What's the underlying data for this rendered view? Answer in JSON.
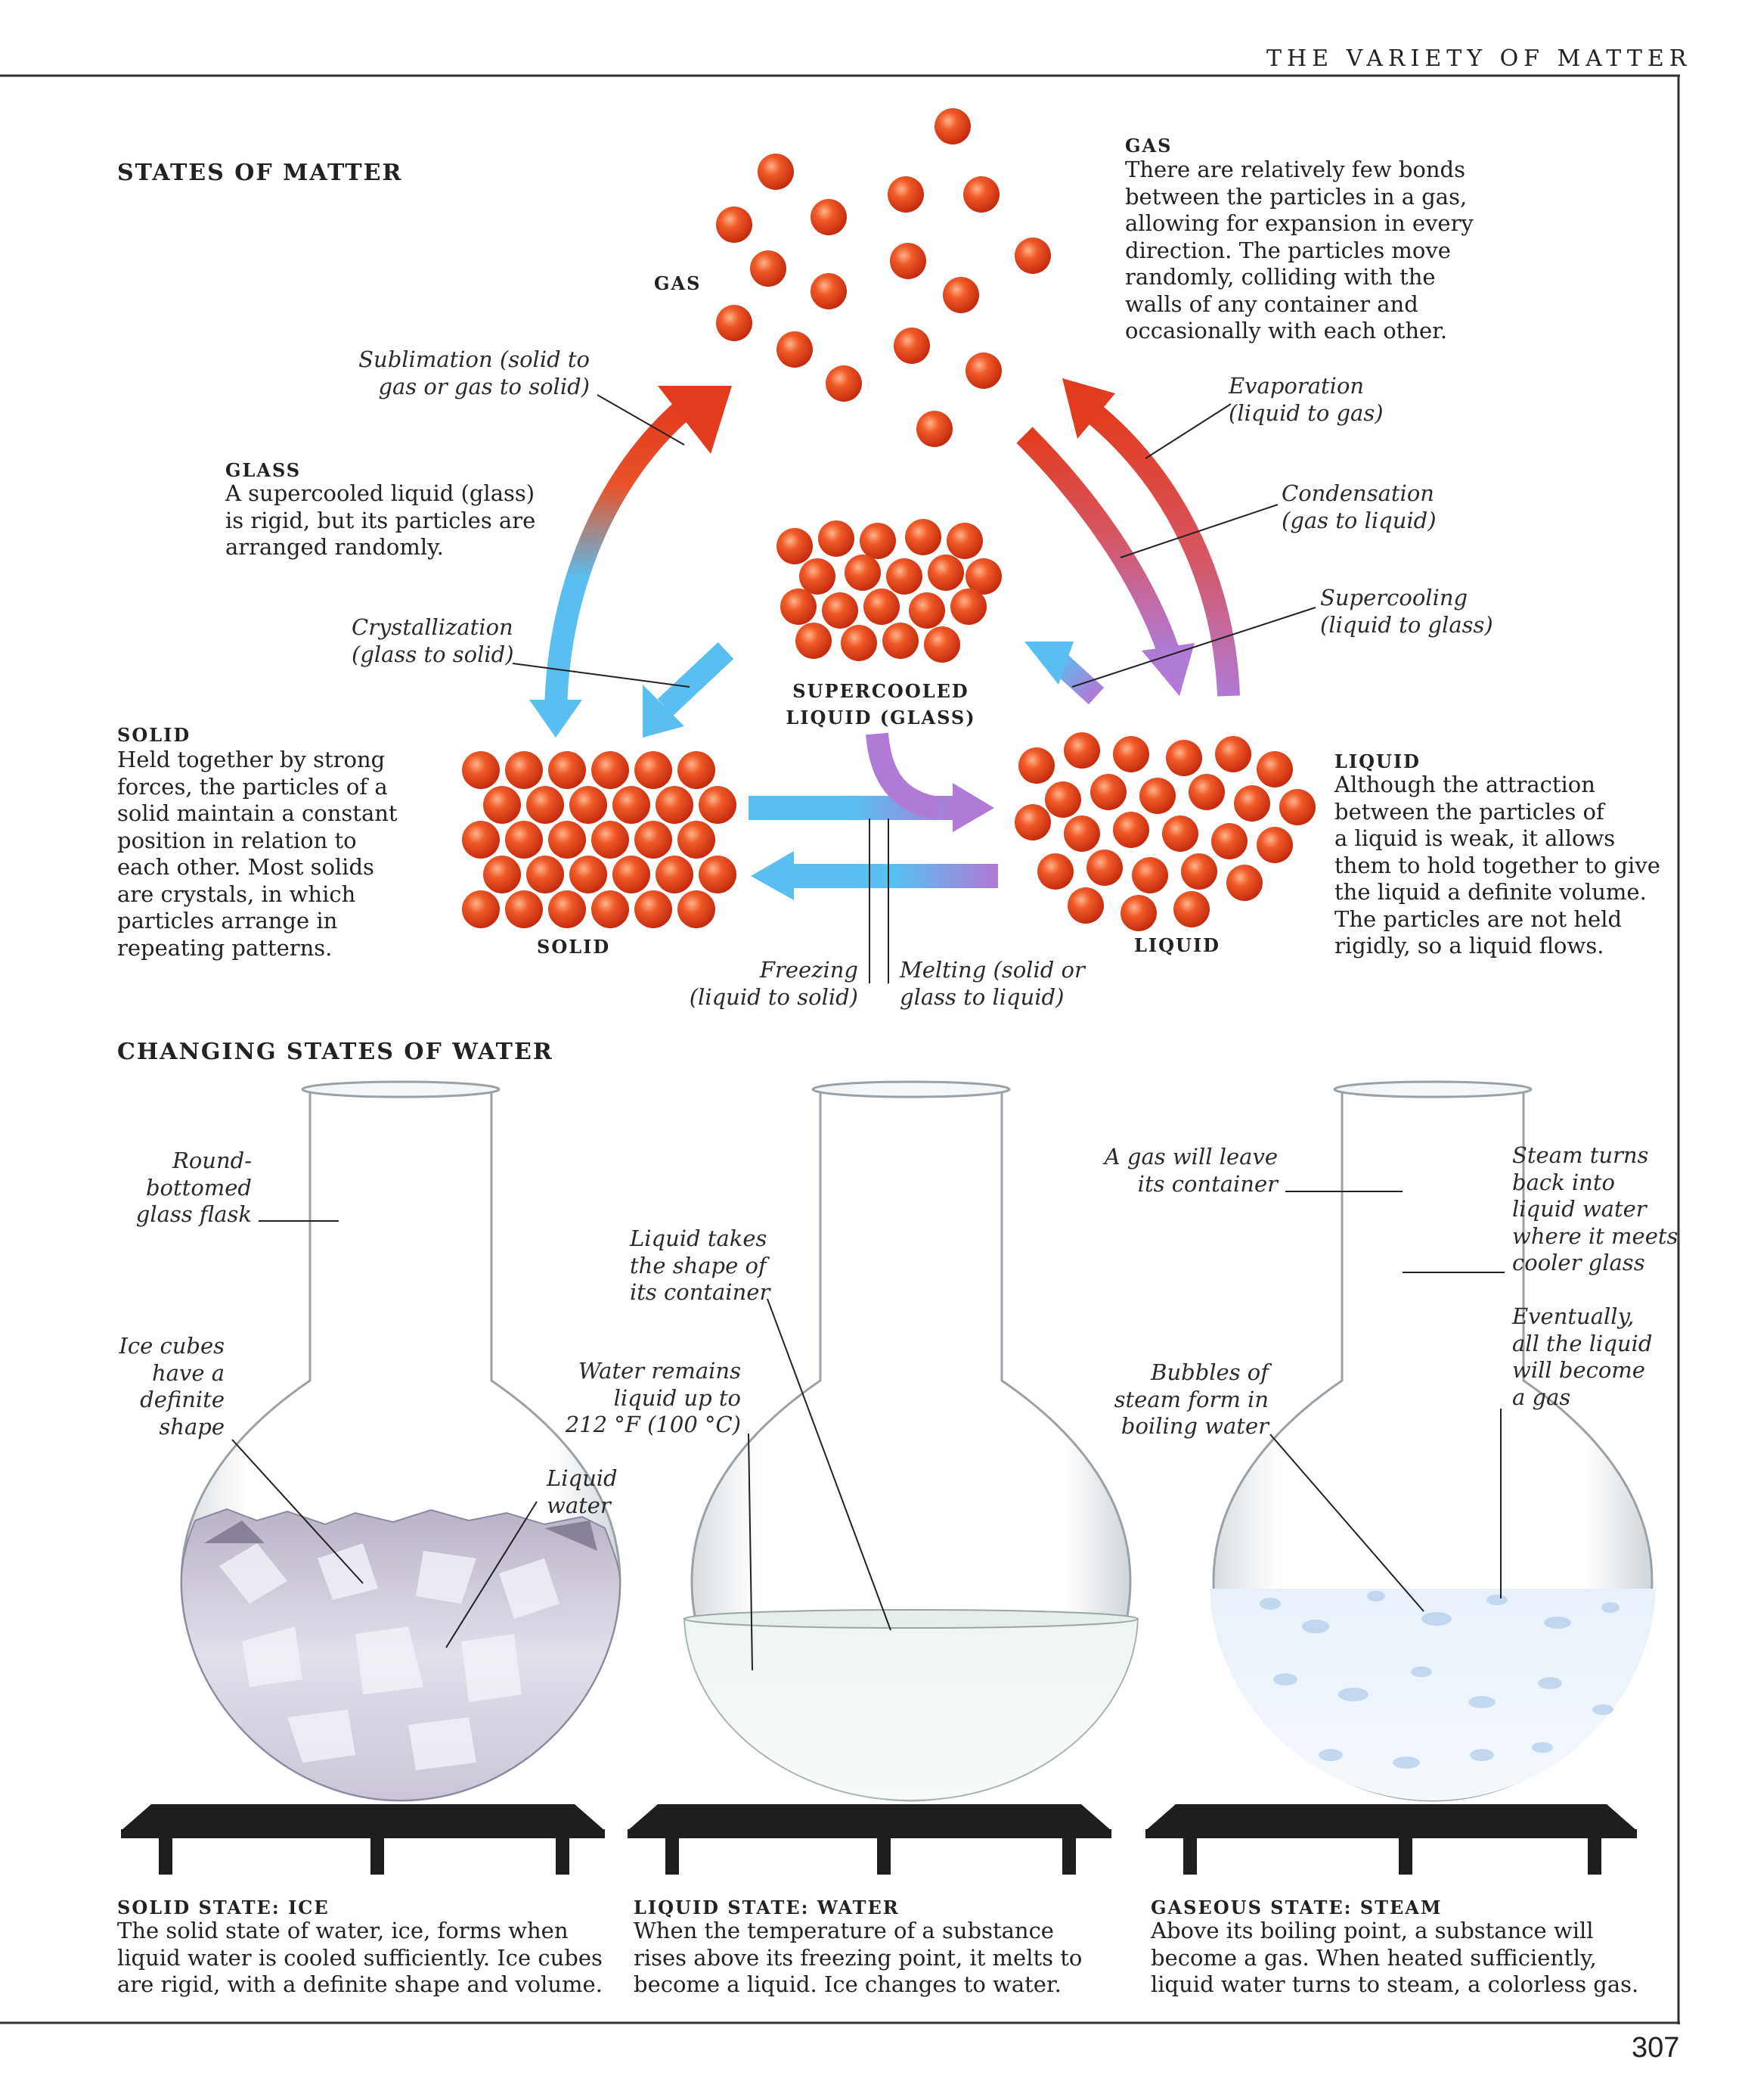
{
  "running_head": "THE VARIETY OF MATTER",
  "page_number": "307",
  "states_section": {
    "title": "STATES OF MATTER",
    "gas": {
      "label": "GAS",
      "heading": "GAS",
      "text": "There are relatively few bonds\nbetween the particles in a gas,\nallowing for expansion in every\ndirection. The particles move\nrandomly, colliding with the\nwalls of any container and\noccasionally with each other."
    },
    "glass": {
      "heading": "GLASS",
      "text": "A supercooled liquid (glass)\nis rigid, but its particles are\narranged randomly.",
      "label": "SUPERCOOLED\nLIQUID (GLASS)"
    },
    "solid": {
      "heading": "SOLID",
      "text": "Held together by strong\nforces, the particles of a\nsolid maintain a constant\nposition in relation to\neach other. Most solids\nare crystals, in which\nparticles arrange in\nrepeating patterns.",
      "label": "SOLID"
    },
    "liquid": {
      "heading": "LIQUID",
      "text": "Although the attraction\nbetween the particles of\na liquid is weak, it allows\nthem to hold together to give\nthe liquid a definite volume.\nThe particles are not held\nrigidly, so a liquid flows.",
      "label": "LIQUID"
    },
    "transitions": {
      "sublimation": "Sublimation (solid to\ngas or gas to solid)",
      "evaporation": "Evaporation\n(liquid to gas)",
      "condensation": "Condensation\n(gas to liquid)",
      "supercooling": "Supercooling\n(liquid to glass)",
      "crystallization": "Crystallization\n(glass to solid)",
      "freezing": "Freezing\n(liquid to solid)",
      "melting": "Melting (solid or\nglass to liquid)"
    }
  },
  "water_section": {
    "title": "CHANGING STATES OF WATER",
    "labels": {
      "flask": "Round-\nbottomed\nglass flask",
      "ice": "Ice cubes\nhave a\ndefinite\nshape",
      "liquid_water": "Liquid\nwater",
      "liquid_shape": "Liquid takes\nthe shape of\nits container",
      "water_remains": "Water remains\nliquid up to\n212 °F (100 °C)",
      "gas_leave": "A gas will leave\nits container",
      "steam_turns": "Steam turns\nback into\nliquid water\nwhere it meets\ncooler glass",
      "bubbles": "Bubbles of\nsteam form in\nboiling water",
      "eventually": "Eventually,\nall the liquid\nwill become\na gas"
    },
    "captions": [
      {
        "heading": "SOLID STATE: ICE",
        "text": "The solid state of water, ice, forms when\nliquid water is cooled sufficiently. Ice cubes\nare rigid, with a definite shape and volume."
      },
      {
        "heading": "LIQUID STATE: WATER",
        "text": "When the temperature of a substance\nrises above its freezing point, it melts to\nbecome a liquid. Ice changes to water."
      },
      {
        "heading": "GASEOUS STATE: STEAM",
        "text": "Above its boiling point, a substance will\nbecome a gas. When heated sufficiently,\nliquid water turns to steam, a colorless gas."
      }
    ]
  },
  "colors": {
    "particle": "#e8451e",
    "blue_arrow": "#5cc0ea",
    "red_arrow": "#e23c1e",
    "purple_arrow": "#b07ad6"
  }
}
